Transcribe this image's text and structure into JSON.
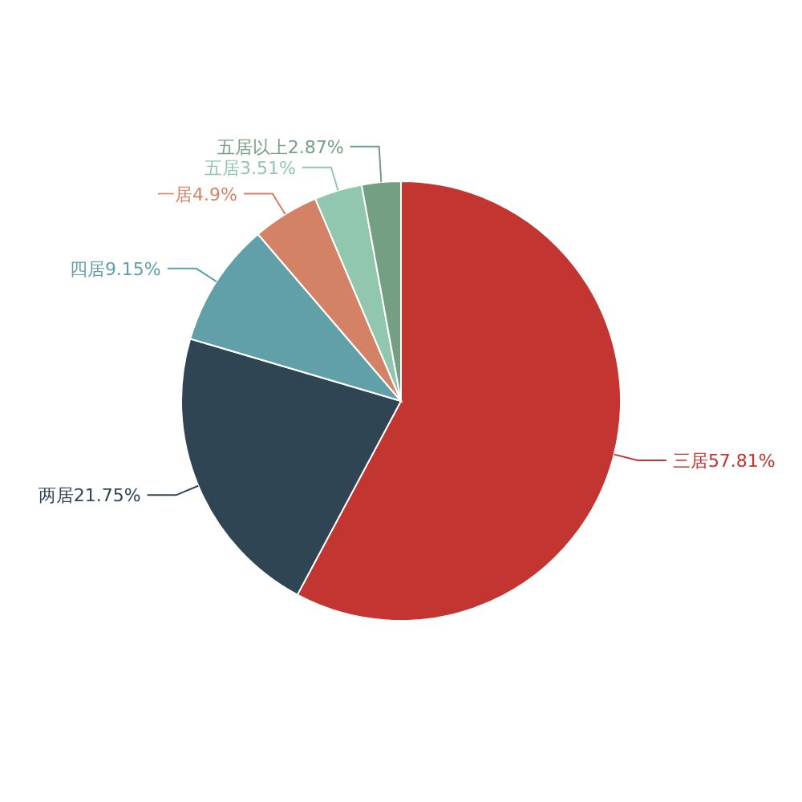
{
  "chart_data": {
    "type": "pie",
    "categories": [
      "三居",
      "两居",
      "四居",
      "一居",
      "五居",
      "五居以上"
    ],
    "values": [
      57.81,
      21.75,
      9.15,
      4.9,
      3.51,
      2.87
    ],
    "value_labels": [
      "57.81%",
      "21.75%",
      "9.15%",
      "4.9%",
      "3.51%",
      "2.87%"
    ],
    "colors": [
      "#c23531",
      "#2f4554",
      "#61a0a8",
      "#d48265",
      "#91c7ae",
      "#749f83"
    ]
  }
}
